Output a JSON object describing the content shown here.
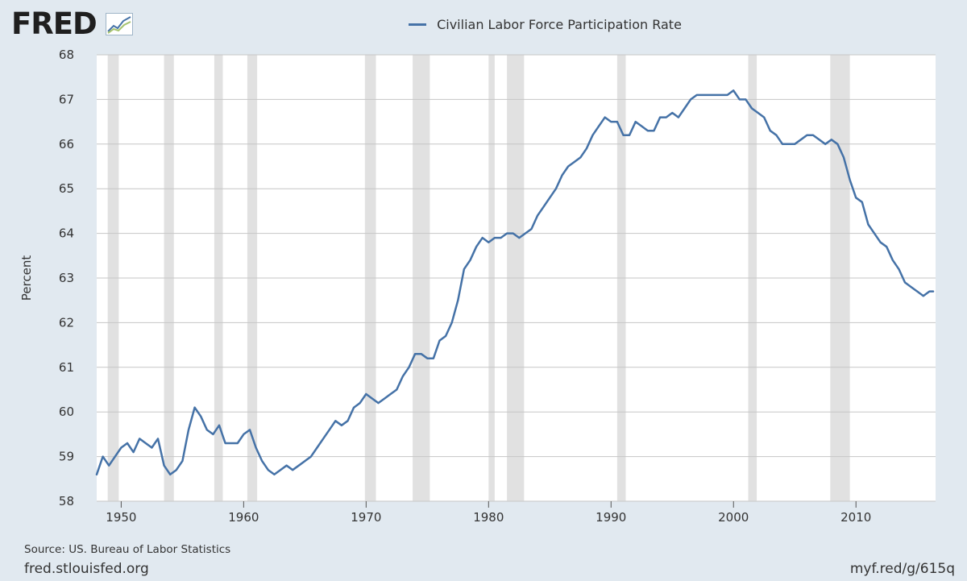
{
  "header": {
    "logo_text": "FRED",
    "logo_icon": "line-chart-icon",
    "legend_label": "Civilian Labor Force Participation Rate"
  },
  "footer": {
    "source": "Source: US. Bureau of Labor Statistics",
    "site": "fred.stlouisfed.org",
    "short_url": "myf.red/g/615q"
  },
  "colors": {
    "background": "#e1e9f0",
    "plot_background": "#ffffff",
    "line": "#4572a7",
    "recession": "#e1e1e1",
    "grid": "#c6c6c6"
  },
  "chart_data": {
    "type": "line",
    "title": "",
    "xlabel": "",
    "ylabel": "Percent",
    "xlim": [
      1948.0,
      2016.5
    ],
    "ylim": [
      58,
      68
    ],
    "x_ticks": [
      1950,
      1960,
      1970,
      1980,
      1990,
      2000,
      2010
    ],
    "y_ticks": [
      58,
      59,
      60,
      61,
      62,
      63,
      64,
      65,
      66,
      67,
      68
    ],
    "grid": "horizontal",
    "legend": "top-center",
    "recessions": [
      [
        1948.9,
        1949.8
      ],
      [
        1953.5,
        1954.3
      ],
      [
        1957.6,
        1958.3
      ],
      [
        1960.3,
        1961.1
      ],
      [
        1969.9,
        1970.8
      ],
      [
        1973.8,
        1975.2
      ],
      [
        1980.0,
        1980.5
      ],
      [
        1981.5,
        1982.9
      ],
      [
        1990.5,
        1991.2
      ],
      [
        2001.2,
        2001.9
      ],
      [
        2007.9,
        2009.5
      ]
    ],
    "series": [
      {
        "name": "Civilian Labor Force Participation Rate",
        "x": [
          1948.0,
          1948.5,
          1949.0,
          1949.5,
          1950.0,
          1950.5,
          1951.0,
          1951.5,
          1952.0,
          1952.5,
          1953.0,
          1953.5,
          1954.0,
          1954.5,
          1955.0,
          1955.5,
          1956.0,
          1956.5,
          1957.0,
          1957.5,
          1958.0,
          1958.5,
          1959.0,
          1959.5,
          1960.0,
          1960.5,
          1961.0,
          1961.5,
          1962.0,
          1962.5,
          1963.0,
          1963.5,
          1964.0,
          1964.5,
          1965.0,
          1965.5,
          1966.0,
          1966.5,
          1967.0,
          1967.5,
          1968.0,
          1968.5,
          1969.0,
          1969.5,
          1970.0,
          1970.5,
          1971.0,
          1971.5,
          1972.0,
          1972.5,
          1973.0,
          1973.5,
          1974.0,
          1974.5,
          1975.0,
          1975.5,
          1976.0,
          1976.5,
          1977.0,
          1977.5,
          1978.0,
          1978.5,
          1979.0,
          1979.5,
          1980.0,
          1980.5,
          1981.0,
          1981.5,
          1982.0,
          1982.5,
          1983.0,
          1983.5,
          1984.0,
          1984.5,
          1985.0,
          1985.5,
          1986.0,
          1986.5,
          1987.0,
          1987.5,
          1988.0,
          1988.5,
          1989.0,
          1989.5,
          1990.0,
          1990.5,
          1991.0,
          1991.5,
          1992.0,
          1992.5,
          1993.0,
          1993.5,
          1994.0,
          1994.5,
          1995.0,
          1995.5,
          1996.0,
          1996.5,
          1997.0,
          1997.5,
          1998.0,
          1998.5,
          1999.0,
          1999.5,
          2000.0,
          2000.5,
          2001.0,
          2001.5,
          2002.0,
          2002.5,
          2003.0,
          2003.5,
          2004.0,
          2004.5,
          2005.0,
          2005.5,
          2006.0,
          2006.5,
          2007.0,
          2007.5,
          2008.0,
          2008.5,
          2009.0,
          2009.5,
          2010.0,
          2010.5,
          2011.0,
          2011.5,
          2012.0,
          2012.5,
          2013.0,
          2013.5,
          2014.0,
          2014.5,
          2015.0,
          2015.5,
          2016.0,
          2016.3
        ],
        "values": [
          58.6,
          59.0,
          58.8,
          59.0,
          59.2,
          59.3,
          59.1,
          59.4,
          59.3,
          59.2,
          59.4,
          58.8,
          58.6,
          58.7,
          58.9,
          59.6,
          60.1,
          59.9,
          59.6,
          59.5,
          59.7,
          59.3,
          59.3,
          59.3,
          59.5,
          59.6,
          59.2,
          58.9,
          58.7,
          58.6,
          58.7,
          58.8,
          58.7,
          58.8,
          58.9,
          59.0,
          59.2,
          59.4,
          59.6,
          59.8,
          59.7,
          59.8,
          60.1,
          60.2,
          60.4,
          60.3,
          60.2,
          60.3,
          60.4,
          60.5,
          60.8,
          61.0,
          61.3,
          61.3,
          61.2,
          61.2,
          61.6,
          61.7,
          62.0,
          62.5,
          63.2,
          63.4,
          63.7,
          63.9,
          63.8,
          63.9,
          63.9,
          64.0,
          64.0,
          63.9,
          64.0,
          64.1,
          64.4,
          64.6,
          64.8,
          65.0,
          65.3,
          65.5,
          65.6,
          65.7,
          65.9,
          66.2,
          66.4,
          66.6,
          66.5,
          66.5,
          66.2,
          66.2,
          66.5,
          66.4,
          66.3,
          66.3,
          66.6,
          66.6,
          66.7,
          66.6,
          66.8,
          67.0,
          67.1,
          67.1,
          67.1,
          67.1,
          67.1,
          67.1,
          67.2,
          67.0,
          67.0,
          66.8,
          66.7,
          66.6,
          66.3,
          66.2,
          66.0,
          66.0,
          66.0,
          66.1,
          66.2,
          66.2,
          66.1,
          66.0,
          66.1,
          66.0,
          65.7,
          65.2,
          64.8,
          64.7,
          64.2,
          64.0,
          63.8,
          63.7,
          63.4,
          63.2,
          62.9,
          62.8,
          62.7,
          62.6,
          62.7,
          62.7
        ]
      }
    ]
  }
}
